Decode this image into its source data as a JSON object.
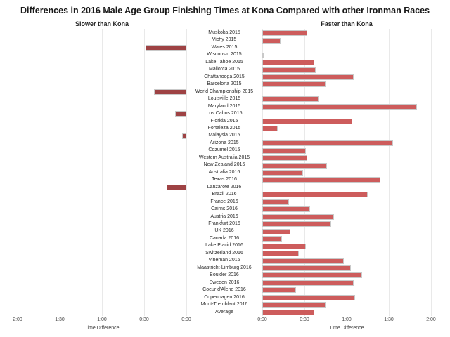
{
  "title": "Differences in 2016 Male Age Group Finishing Times at Kona Compared with other Ironman Races",
  "chart_data": {
    "type": "bar",
    "orientation": "horizontal-diverging",
    "left_panel_header": "Slower than Kona",
    "right_panel_header": "Faster than Kona",
    "axis_label_left": "Time Difference",
    "axis_label_right": "Time Difference",
    "left_axis_ticks": [
      "2:00",
      "1:30",
      "1:00",
      "0:30",
      "0:00"
    ],
    "right_axis_ticks": [
      "0:00",
      "0:30",
      "1:00",
      "1:30",
      "2:00"
    ],
    "axis_range_minutes": [
      0,
      120
    ],
    "tick_interval_minutes": 30,
    "grid": true,
    "rows": [
      {
        "label": "Muskoka 2015",
        "direction": "faster",
        "minutes": 32,
        "time": "0:32"
      },
      {
        "label": "Vichy 2015",
        "direction": "faster",
        "minutes": 13,
        "time": "0:13"
      },
      {
        "label": "Wales 2015",
        "direction": "slower",
        "minutes": 29,
        "time": "0:29"
      },
      {
        "label": "Wisconsin 2015",
        "direction": "faster",
        "minutes": 1,
        "time": "0:01"
      },
      {
        "label": "Lake Tahoe 2015",
        "direction": "faster",
        "minutes": 37,
        "time": "0:37"
      },
      {
        "label": "Mallorca 2015",
        "direction": "faster",
        "minutes": 38,
        "time": "0:38"
      },
      {
        "label": "Chattanooga 2015",
        "direction": "faster",
        "minutes": 65,
        "time": "1:05"
      },
      {
        "label": "Barcelona 2015",
        "direction": "faster",
        "minutes": 45,
        "time": "0:45"
      },
      {
        "label": "World Championship 2015",
        "direction": "slower",
        "minutes": 23,
        "time": "0:23"
      },
      {
        "label": "Louisville 2015",
        "direction": "faster",
        "minutes": 40,
        "time": "0:40"
      },
      {
        "label": "Maryland 2015",
        "direction": "faster",
        "minutes": 110,
        "time": "1:50"
      },
      {
        "label": "Los Cabos 2015",
        "direction": "slower",
        "minutes": 8,
        "time": "0:08"
      },
      {
        "label": "Florida 2015",
        "direction": "faster",
        "minutes": 64,
        "time": "1:04"
      },
      {
        "label": "Fortaleza 2015",
        "direction": "faster",
        "minutes": 11,
        "time": "0:11"
      },
      {
        "label": "Malaysia 2015",
        "direction": "slower",
        "minutes": 3,
        "time": "0:03"
      },
      {
        "label": "Arizona 2015",
        "direction": "faster",
        "minutes": 93,
        "time": "1:33"
      },
      {
        "label": "Cozumel 2015",
        "direction": "faster",
        "minutes": 31,
        "time": "0:31"
      },
      {
        "label": "Western Australia 2015",
        "direction": "faster",
        "minutes": 32,
        "time": "0:32"
      },
      {
        "label": "New Zealand 2016",
        "direction": "faster",
        "minutes": 46,
        "time": "0:46"
      },
      {
        "label": "Australia 2016",
        "direction": "faster",
        "minutes": 29,
        "time": "0:29"
      },
      {
        "label": "Texas 2016",
        "direction": "faster",
        "minutes": 84,
        "time": "1:24"
      },
      {
        "label": "Lanzarote 2016",
        "direction": "slower",
        "minutes": 14,
        "time": "0:14"
      },
      {
        "label": "Brazil 2016",
        "direction": "faster",
        "minutes": 75,
        "time": "1:15"
      },
      {
        "label": "France 2016",
        "direction": "faster",
        "minutes": 19,
        "time": "0:19"
      },
      {
        "label": "Cairns 2016",
        "direction": "faster",
        "minutes": 34,
        "time": "0:34"
      },
      {
        "label": "Austria 2016",
        "direction": "faster",
        "minutes": 51,
        "time": "0:51"
      },
      {
        "label": "Frankfurt 2016",
        "direction": "faster",
        "minutes": 49,
        "time": "0:49"
      },
      {
        "label": "UK 2016",
        "direction": "faster",
        "minutes": 20,
        "time": "0:20"
      },
      {
        "label": "Canada 2016",
        "direction": "faster",
        "minutes": 14,
        "time": "0:14"
      },
      {
        "label": "Lake Placid 2016",
        "direction": "faster",
        "minutes": 31,
        "time": "0:31"
      },
      {
        "label": "Switzerland 2016",
        "direction": "faster",
        "minutes": 26,
        "time": "0:26"
      },
      {
        "label": "Vineman 2016",
        "direction": "faster",
        "minutes": 58,
        "time": "0:58"
      },
      {
        "label": "Maastricht-Limburg 2016",
        "direction": "faster",
        "minutes": 63,
        "time": "1:03"
      },
      {
        "label": "Boulder 2016",
        "direction": "faster",
        "minutes": 71,
        "time": "1:11"
      },
      {
        "label": "Sweden 2016",
        "direction": "faster",
        "minutes": 65,
        "time": "1:05"
      },
      {
        "label": "Coeur d'Alene 2016",
        "direction": "faster",
        "minutes": 24,
        "time": "0:24"
      },
      {
        "label": "Copenhagen 2016",
        "direction": "faster",
        "minutes": 66,
        "time": "1:06"
      },
      {
        "label": "Mont-Tremblant 2016",
        "direction": "faster",
        "minutes": 45,
        "time": "0:45"
      },
      {
        "label": "Average",
        "direction": "faster",
        "minutes": 37,
        "time": "0:37"
      }
    ],
    "colors": {
      "faster_bar": "#cd5c5c",
      "slower_bar": "#9e4244",
      "bar_border": "#c9c9c9",
      "gridline": "#e9e9e9",
      "title_text": "#1a1a1a",
      "label_text": "#2b2b2b",
      "tick_text": "#4a4a4a",
      "background": "#ffffff"
    }
  }
}
